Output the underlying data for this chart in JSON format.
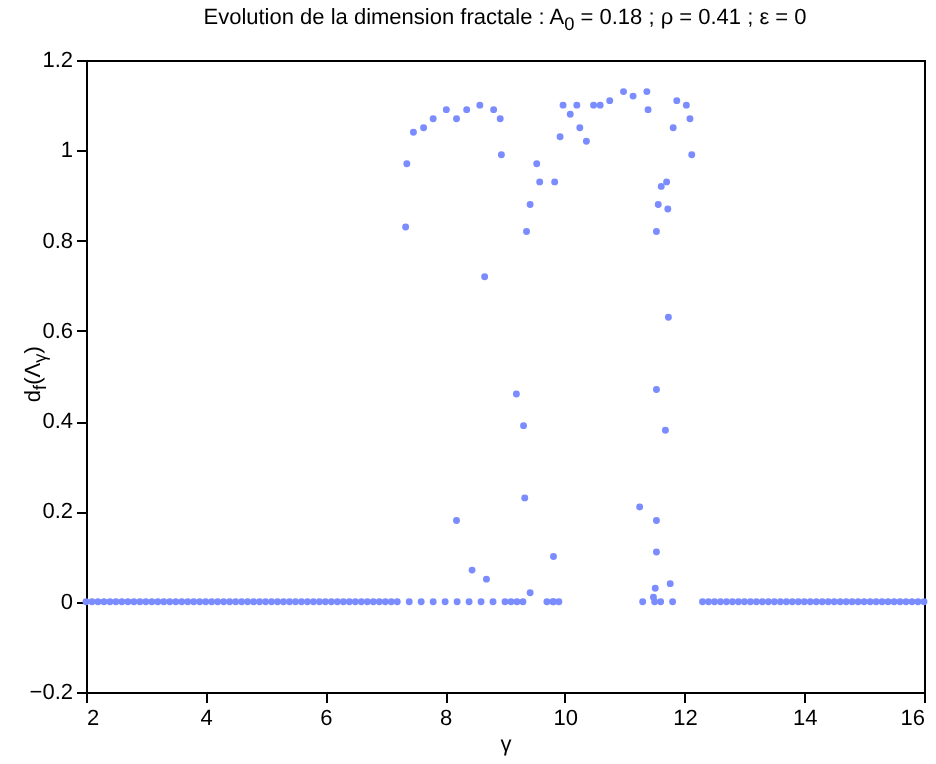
{
  "chart_data": {
    "type": "scatter",
    "title": "Evolution de la dimension fractale : A$_{0}$ = 0.18 ; ρ = 0.41 ; ε = 0",
    "xlabel": "γ",
    "ylabel": "d$_{f}$(Λ$_{γ}$)",
    "xlim": [
      2,
      16
    ],
    "xticks": [
      2,
      4,
      6,
      8,
      10,
      12,
      14,
      16
    ],
    "ylim": [
      -0.2,
      1.2
    ],
    "yticks": [
      -0.2,
      0,
      0.2,
      0.4,
      0.6,
      0.8,
      1,
      1.2
    ],
    "grid": false,
    "marker": "circle",
    "series": [
      {
        "color": "#7b8cff",
        "x": [
          2,
          2.1,
          2.2,
          2.3,
          2.4,
          2.5,
          2.6,
          2.7,
          2.8,
          2.9,
          3,
          3.1,
          3.2,
          3.3,
          3.4,
          3.5,
          3.6,
          3.7,
          3.8,
          3.9,
          4,
          4.1,
          4.2,
          4.3,
          4.4,
          4.5,
          4.6,
          4.7,
          4.8,
          4.9,
          5,
          5.1,
          5.2,
          5.3,
          5.4,
          5.5,
          5.6,
          5.7,
          5.8,
          5.9,
          6,
          6.1,
          6.2,
          6.3,
          6.4,
          6.5,
          6.6,
          6.7,
          6.8,
          6.9,
          7,
          7.1,
          7.2,
          12.3,
          12.4,
          12.5,
          12.6,
          12.7,
          12.8,
          12.9,
          13,
          13.1,
          13.2,
          13.3,
          13.4,
          13.5,
          13.6,
          13.7,
          13.8,
          13.9,
          14,
          14.1,
          14.2,
          14.3,
          14.4,
          14.5,
          14.6,
          14.7,
          14.8,
          14.9,
          15,
          15.1,
          15.2,
          15.3,
          15.4,
          15.5,
          15.6,
          15.7,
          15.8,
          15.9,
          16,
          7.4,
          7.6,
          7.8,
          8.0,
          8.2,
          8.4,
          8.6,
          8.8,
          9.0,
          9.1,
          9.2,
          9.3,
          9.7,
          9.8,
          9.9,
          11.3,
          11.5,
          11.6,
          11.8,
          7.34,
          7.36,
          7.47,
          7.64,
          7.8,
          8.02,
          8.19,
          8.36,
          8.58,
          8.81,
          8.92,
          8.94,
          9.36,
          9.42,
          9.53,
          9.58,
          9.83,
          9.92,
          9.97,
          10.09,
          10.2,
          10.25,
          10.36,
          10.48,
          10.59,
          10.75,
          10.98,
          11.14,
          11.37,
          11.39,
          11.61,
          11.56,
          11.7,
          11.72,
          11.53,
          11.81,
          11.87,
          12.03,
          12.09,
          12.12,
          11.73,
          8.66,
          9.19,
          9.31,
          9.33,
          8.19,
          8.45,
          8.69,
          9.42,
          9.81,
          9.81,
          11.53,
          11.68,
          11.25,
          11.53,
          11.53,
          11.76,
          11.51,
          11.48
        ],
        "values": [
          0,
          0,
          0,
          0,
          0,
          0,
          0,
          0,
          0,
          0,
          0,
          0,
          0,
          0,
          0,
          0,
          0,
          0,
          0,
          0,
          0,
          0,
          0,
          0,
          0,
          0,
          0,
          0,
          0,
          0,
          0,
          0,
          0,
          0,
          0,
          0,
          0,
          0,
          0,
          0,
          0,
          0,
          0,
          0,
          0,
          0,
          0,
          0,
          0,
          0,
          0,
          0,
          0,
          0,
          0,
          0,
          0,
          0,
          0,
          0,
          0,
          0,
          0,
          0,
          0,
          0,
          0,
          0,
          0,
          0,
          0,
          0,
          0,
          0,
          0,
          0,
          0,
          0,
          0,
          0,
          0,
          0,
          0,
          0,
          0,
          0,
          0,
          0,
          0,
          0,
          0,
          0,
          0,
          0,
          0,
          0,
          0,
          0,
          0,
          0,
          0,
          0,
          0,
          0,
          0,
          0,
          0,
          0,
          0,
          0,
          0.83,
          0.97,
          1.04,
          1.05,
          1.07,
          1.09,
          1.07,
          1.09,
          1.1,
          1.09,
          1.07,
          0.99,
          0.82,
          0.88,
          0.97,
          0.93,
          0.93,
          1.03,
          1.1,
          1.08,
          1.1,
          1.05,
          1.02,
          1.1,
          1.1,
          1.11,
          1.13,
          1.12,
          1.13,
          1.09,
          0.92,
          0.88,
          0.93,
          0.87,
          0.82,
          1.05,
          1.11,
          1.1,
          1.07,
          0.99,
          0.63,
          0.72,
          0.46,
          0.39,
          0.23,
          0.18,
          0.07,
          0.05,
          0.02,
          0.1,
          0,
          0.47,
          0.38,
          0.21,
          0.18,
          0.11,
          0.04,
          0.03,
          0.01
        ]
      }
    ]
  }
}
